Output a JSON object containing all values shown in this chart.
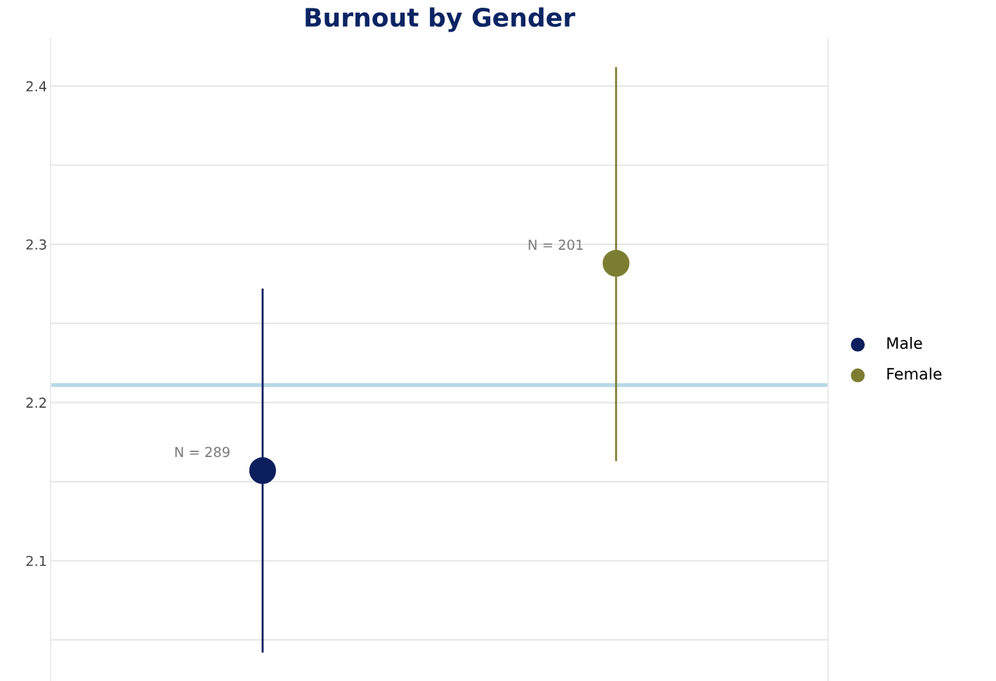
{
  "chart_data": {
    "type": "scatter",
    "title": "Burnout by Gender",
    "categories": [
      null,
      null
    ],
    "series": [
      {
        "name": "Male",
        "color": "#0b1f5e",
        "values": [
          2.157,
          null
        ],
        "errors": [
          [
            2.042,
            2.272
          ],
          null
        ]
      },
      {
        "name": "Female",
        "color": "#7d7d32",
        "values": [
          null,
          2.288
        ],
        "errors": [
          null,
          [
            2.163,
            2.412
          ]
        ]
      }
    ],
    "annotations": [
      "N = 289",
      "N = 201"
    ],
    "ref_lines": [
      {
        "axis": "y",
        "value": 2.211,
        "color": "#b7d9e6"
      }
    ],
    "ylim": [
      2.024,
      2.43
    ],
    "yticks": [
      {
        "value": 2.05,
        "label": null
      },
      2.1,
      {
        "value": 2.15,
        "label": null
      },
      2.2,
      {
        "value": 2.25,
        "label": null
      },
      2.3,
      {
        "value": 2.35,
        "label": null
      },
      2.4
    ],
    "grid": "y",
    "legend": "right",
    "marker": "circle"
  }
}
